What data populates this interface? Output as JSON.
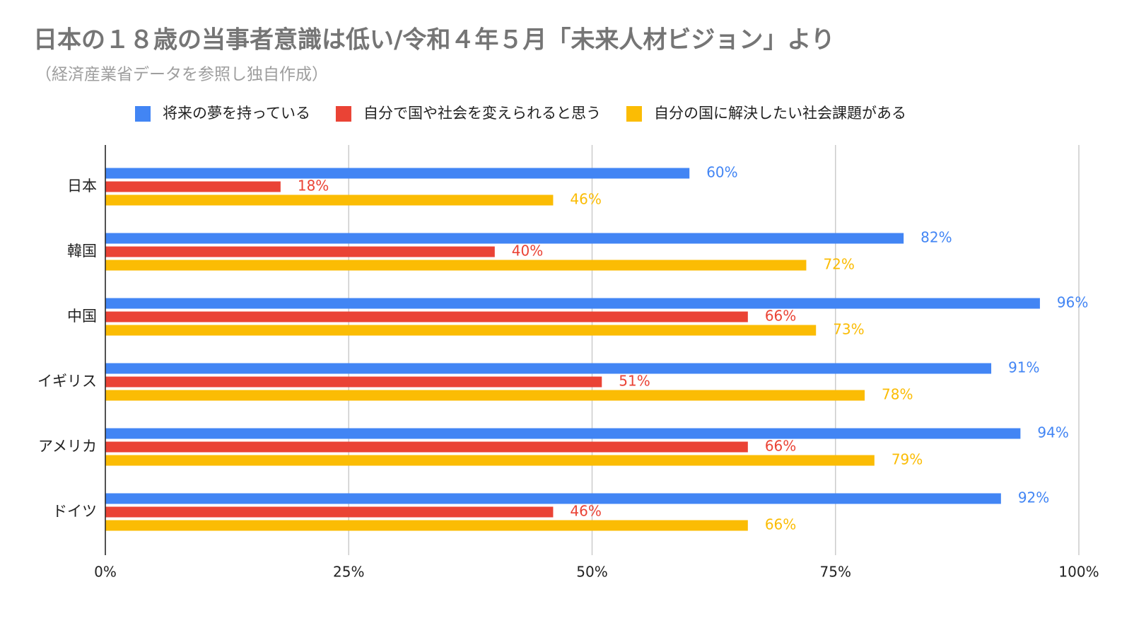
{
  "chart_data": {
    "type": "hbar",
    "title": "日本の１８歳の当事者意識は低い/令和４年５月「未来人材ビジョン」より",
    "subtitle": "（経済産業省データを参照し独自作成）",
    "categories": [
      "日本",
      "韓国",
      "中国",
      "イギリス",
      "アメリカ",
      "ドイツ"
    ],
    "series": [
      {
        "name": "将来の夢を持っている",
        "color": "#4285f4",
        "values": [
          60,
          82,
          96,
          91,
          94,
          92
        ],
        "value_labels": [
          "60%",
          "82%",
          "96%",
          "91%",
          "94%",
          "92%"
        ]
      },
      {
        "name": "自分で国や社会を変えられると思う",
        "color": "#ea4335",
        "values": [
          18,
          40,
          66,
          51,
          66,
          46
        ],
        "value_labels": [
          "18%",
          "40%",
          "66%",
          "51%",
          "66%",
          "46%"
        ]
      },
      {
        "name": "自分の国に解決したい社会課題がある",
        "color": "#fbbc04",
        "values": [
          46,
          72,
          73,
          78,
          79,
          66
        ],
        "value_labels": [
          "46%",
          "72%",
          "73%",
          "78%",
          "79%",
          "66%"
        ]
      }
    ],
    "xlim": [
      0,
      100
    ],
    "xticks": [
      {
        "value": 0,
        "label": "0%"
      },
      {
        "value": 25,
        "label": "25%"
      },
      {
        "value": 50,
        "label": "50%"
      },
      {
        "value": 75,
        "label": "75%"
      },
      {
        "value": 100,
        "label": "100%"
      }
    ],
    "grid": true,
    "legend": "top"
  }
}
